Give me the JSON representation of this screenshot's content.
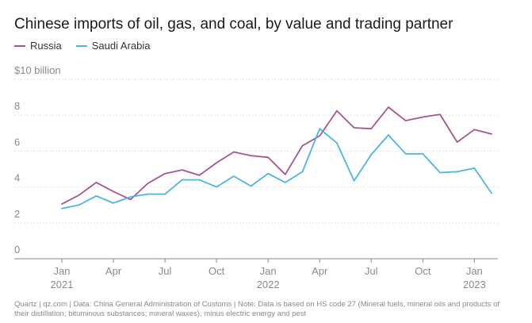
{
  "colors": {
    "russia": "#a5558f",
    "saudi": "#4db4e2",
    "grid": "#e6e6e6",
    "axis": "#888888"
  },
  "footer": "Quartz | qz.com | Data: China General Administration of Customs | Note: Data is based on HS code 27 (Mineral fuels, mineral oils and products of their distillation; bituminous substances; mineral waxes), minus electric energy and pest",
  "chart_data": {
    "type": "line",
    "title": "Chinese imports of oil, gas, and coal, by value and trading partner",
    "ylabel": "",
    "ylim": [
      0,
      10
    ],
    "y_ticks": [
      {
        "value": 10,
        "label": "$10 billion"
      },
      {
        "value": 8,
        "label": "8"
      },
      {
        "value": 6,
        "label": "6"
      },
      {
        "value": 4,
        "label": "4"
      },
      {
        "value": 2,
        "label": "2"
      },
      {
        "value": 0,
        "label": "0"
      }
    ],
    "x_ticks": [
      {
        "index": 0,
        "label": "Jan",
        "sub": "2021"
      },
      {
        "index": 3,
        "label": "Apr",
        "sub": ""
      },
      {
        "index": 6,
        "label": "Jul",
        "sub": ""
      },
      {
        "index": 9,
        "label": "Oct",
        "sub": ""
      },
      {
        "index": 12,
        "label": "Jan",
        "sub": "2022"
      },
      {
        "index": 15,
        "label": "Apr",
        "sub": ""
      },
      {
        "index": 18,
        "label": "Jul",
        "sub": ""
      },
      {
        "index": 21,
        "label": "Oct",
        "sub": ""
      },
      {
        "index": 24,
        "label": "Jan",
        "sub": "2023"
      }
    ],
    "x": [
      "2021-01",
      "2021-02",
      "2021-03",
      "2021-04",
      "2021-05",
      "2021-06",
      "2021-07",
      "2021-08",
      "2021-09",
      "2021-10",
      "2021-11",
      "2021-12",
      "2022-01",
      "2022-02",
      "2022-03",
      "2022-04",
      "2022-05",
      "2022-06",
      "2022-07",
      "2022-08",
      "2022-09",
      "2022-10",
      "2022-11",
      "2022-12",
      "2023-01",
      "2023-02"
    ],
    "series": [
      {
        "name": "Russia",
        "values": [
          3.05,
          3.55,
          4.25,
          3.75,
          3.3,
          4.2,
          4.75,
          4.95,
          4.65,
          5.35,
          5.95,
          5.75,
          5.65,
          4.7,
          6.3,
          6.85,
          8.25,
          7.3,
          7.25,
          8.45,
          7.7,
          7.9,
          8.05,
          6.5,
          7.2,
          6.95
        ]
      },
      {
        "name": "Saudi Arabia",
        "values": [
          2.8,
          3.0,
          3.5,
          3.1,
          3.45,
          3.6,
          3.6,
          4.4,
          4.4,
          4.0,
          4.6,
          4.05,
          4.75,
          4.25,
          4.85,
          7.25,
          6.45,
          4.35,
          5.8,
          6.9,
          5.85,
          5.85,
          4.8,
          4.85,
          5.05,
          3.65
        ]
      }
    ]
  }
}
